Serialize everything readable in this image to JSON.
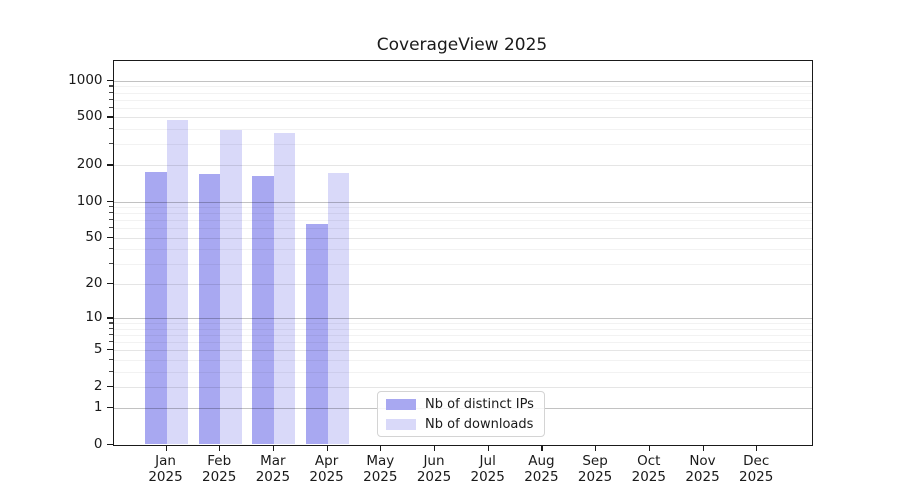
{
  "title": "CoverageView 2025",
  "colors": {
    "ips": "#a8a8f1",
    "downloads": "#d9d9f9",
    "spine": "#1a1a1a",
    "text": "#1a1a1a",
    "legend_border": "#d4d4d4",
    "grid_major": "#c6c6c6",
    "grid_mid": "#e6e6e6",
    "grid_minor": "#f3f3f3"
  },
  "chart_data": {
    "type": "bar",
    "title": "CoverageView 2025",
    "categories": [
      "Jan",
      "Feb",
      "Mar",
      "Apr",
      "May",
      "Jun",
      "Jul",
      "Aug",
      "Sep",
      "Oct",
      "Nov",
      "Dec"
    ],
    "x_tick_line2": "2025",
    "series": [
      {
        "name": "Nb of distinct IPs",
        "color_key": "ips",
        "values": [
          175,
          170,
          163,
          65,
          0,
          0,
          0,
          0,
          0,
          0,
          0,
          0
        ]
      },
      {
        "name": "Nb of downloads",
        "color_key": "downloads",
        "values": [
          475,
          390,
          370,
          172,
          0,
          0,
          0,
          0,
          0,
          0,
          0,
          0
        ]
      }
    ],
    "yscale": "log1p",
    "ylim": [
      0,
      1430
    ],
    "ytick_labels": [
      "1000",
      "500",
      "200",
      "100",
      "50",
      "20",
      "10",
      "5",
      "2",
      "1",
      "0"
    ],
    "ytick_values": [
      1000,
      500,
      200,
      100,
      50,
      20,
      10,
      5,
      2,
      1,
      0
    ],
    "grid": {
      "major": [
        1000,
        100,
        10,
        1
      ],
      "mid": [
        500,
        200,
        50,
        20,
        5,
        2
      ],
      "minor": [
        900,
        800,
        700,
        600,
        400,
        300,
        90,
        80,
        70,
        60,
        40,
        30,
        9,
        8,
        7,
        6,
        4,
        3
      ]
    },
    "grid_on": true,
    "legend_position": "inside-bottom-center"
  }
}
